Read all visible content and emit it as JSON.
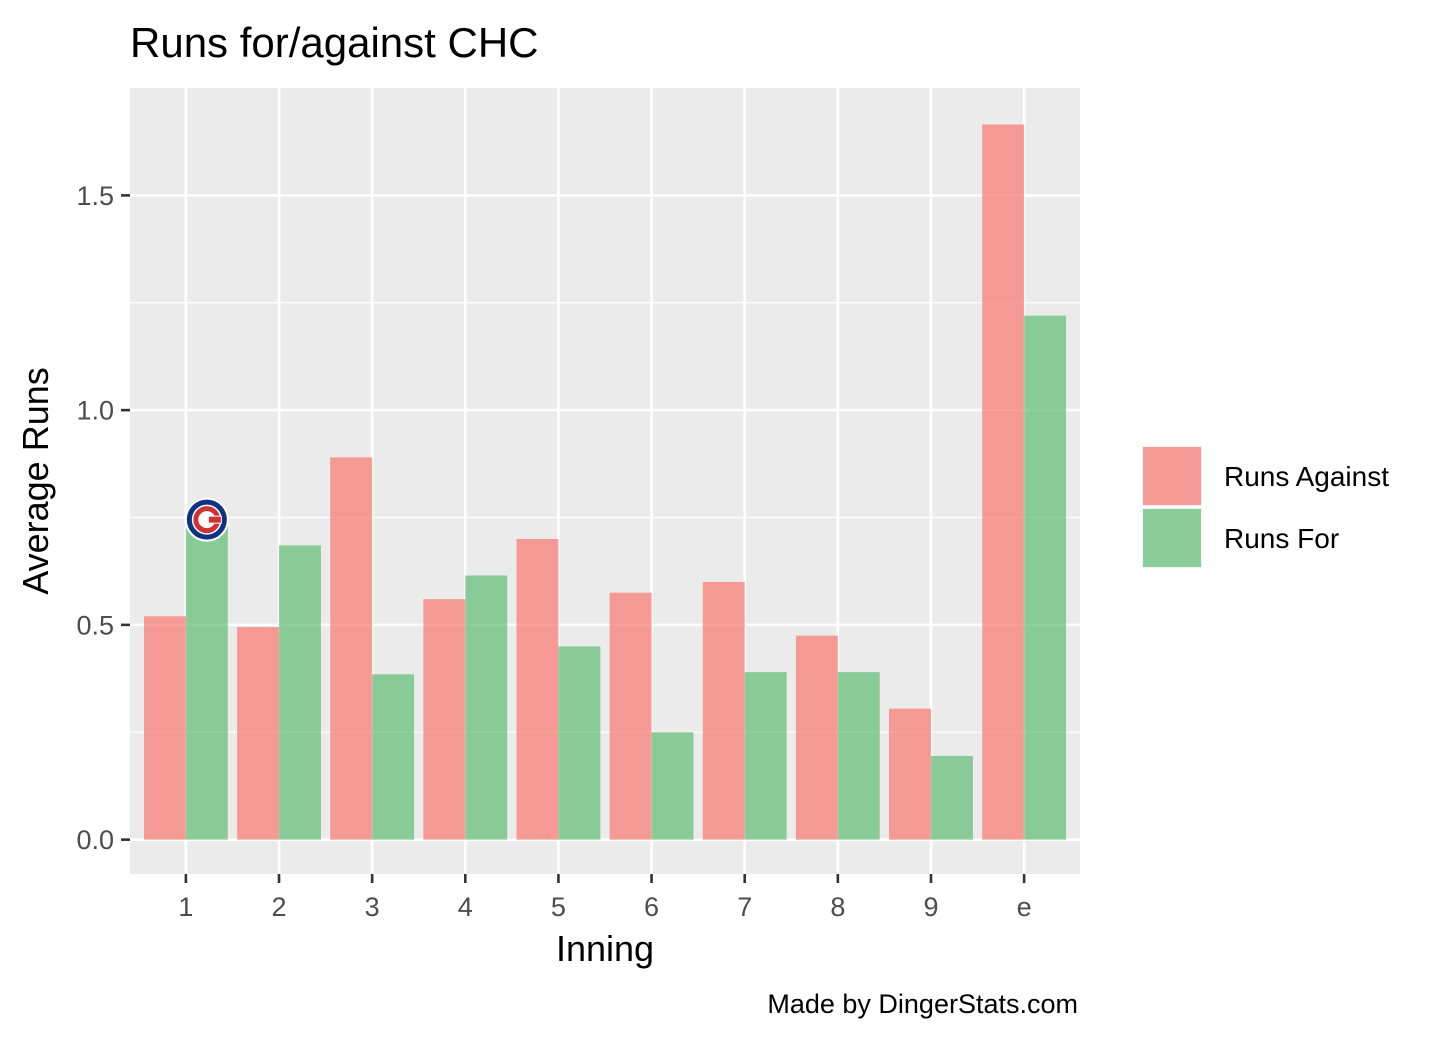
{
  "chart_data": {
    "type": "bar",
    "title": "Runs for/against CHC",
    "xlabel": "Inning",
    "ylabel": "Average Runs",
    "caption": "Made by DingerStats.com",
    "categories": [
      "1",
      "2",
      "3",
      "4",
      "5",
      "6",
      "7",
      "8",
      "9",
      "e"
    ],
    "series": [
      {
        "name": "Runs Against",
        "color": "#f8766d",
        "values": [
          0.52,
          0.495,
          0.89,
          0.56,
          0.7,
          0.575,
          0.6,
          0.475,
          0.305,
          1.665
        ]
      },
      {
        "name": "Runs For",
        "color": "#5ebd73",
        "values": [
          0.745,
          0.685,
          0.385,
          0.615,
          0.45,
          0.25,
          0.39,
          0.39,
          0.195,
          1.22
        ]
      }
    ],
    "ylim": [
      -0.08,
      1.75
    ],
    "yticks": [
      0.0,
      0.5,
      1.0,
      1.5
    ],
    "ytick_labels": [
      "0.0",
      "0.5",
      "1.0",
      "1.5"
    ],
    "grid": true,
    "legend_position": "right",
    "logo": {
      "icon": "cubs-logo-icon",
      "category_index": 0,
      "series_index": 1
    },
    "colors": {
      "panel_background": "#ebebeb",
      "grid_line": "#ffffff"
    }
  }
}
